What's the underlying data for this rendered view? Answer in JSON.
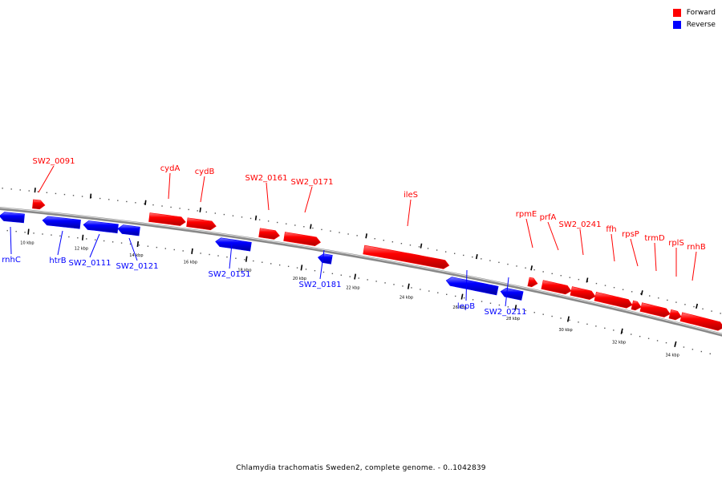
{
  "legend": {
    "forward_label": "Forward",
    "reverse_label": "Reverse",
    "forward_color": "#ff0000",
    "reverse_color": "#0000ff"
  },
  "caption": "Chlamydia trachomatis Sweden2, complete genome. - 0..1042839",
  "scale": {
    "unit": "kbp",
    "tick_labels": [
      "10 kbp",
      "12 kbp",
      "14 kbp",
      "16 kbp",
      "18 kbp",
      "20 kbp",
      "22 kbp",
      "24 kbp",
      "26 kbp",
      "28 kbp",
      "30 kbp",
      "32 kbp",
      "34 kbp"
    ]
  },
  "genes": [
    {
      "name": "rnhC",
      "strand": "reverse"
    },
    {
      "name": "SW2_0091",
      "strand": "forward"
    },
    {
      "name": "htrB",
      "strand": "reverse"
    },
    {
      "name": "SW2_0111",
      "strand": "reverse"
    },
    {
      "name": "SW2_0121",
      "strand": "reverse"
    },
    {
      "name": "cydA",
      "strand": "forward"
    },
    {
      "name": "cydB",
      "strand": "forward"
    },
    {
      "name": "SW2_0151",
      "strand": "reverse"
    },
    {
      "name": "SW2_0161",
      "strand": "forward"
    },
    {
      "name": "SW2_0171",
      "strand": "forward"
    },
    {
      "name": "SW2_0181",
      "strand": "reverse"
    },
    {
      "name": "ileS",
      "strand": "forward"
    },
    {
      "name": "lepB",
      "strand": "reverse"
    },
    {
      "name": "SW2_0211",
      "strand": "reverse"
    },
    {
      "name": "rpmE",
      "strand": "forward"
    },
    {
      "name": "prfA",
      "strand": "forward"
    },
    {
      "name": "SW2_0241",
      "strand": "forward"
    },
    {
      "name": "ffh",
      "strand": "forward"
    },
    {
      "name": "rpsP",
      "strand": "forward"
    },
    {
      "name": "trmD",
      "strand": "forward"
    },
    {
      "name": "rplS",
      "strand": "forward"
    },
    {
      "name": "rnhB",
      "strand": "forward"
    }
  ]
}
